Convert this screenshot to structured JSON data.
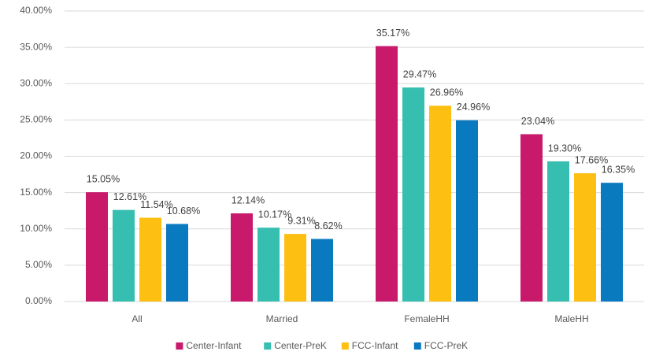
{
  "chart_data": {
    "type": "bar",
    "categories": [
      "All",
      "Married",
      "FemaleHH",
      "MaleHH"
    ],
    "series": [
      {
        "name": "Center-Infant",
        "color": "#c8196b",
        "values": [
          15.05,
          12.14,
          35.17,
          23.04
        ],
        "value_labels": [
          "15.05%",
          "12.14%",
          "35.17%",
          "23.04%"
        ]
      },
      {
        "name": "Center-PreK",
        "color": "#36bfb1",
        "values": [
          12.61,
          10.17,
          29.47,
          19.3
        ],
        "value_labels": [
          "12.61%",
          "10.17%",
          "29.47%",
          "19.30%"
        ]
      },
      {
        "name": "FCC-Infant",
        "color": "#fdbf12",
        "values": [
          11.54,
          9.31,
          26.96,
          17.66
        ],
        "value_labels": [
          "11.54%",
          "9.31%",
          "26.96%",
          "17.66%"
        ]
      },
      {
        "name": "FCC-PreK",
        "color": "#0979c0",
        "values": [
          10.68,
          8.62,
          24.96,
          16.35
        ],
        "value_labels": [
          "10.68%",
          "8.62%",
          "24.96%",
          "16.35%"
        ]
      }
    ],
    "ylim": [
      0,
      40
    ],
    "yticks": [
      {
        "value": 0,
        "label": "0.00%"
      },
      {
        "value": 5,
        "label": "5.00%"
      },
      {
        "value": 10,
        "label": "10.00%"
      },
      {
        "value": 15,
        "label": "15.00%"
      },
      {
        "value": 20,
        "label": "20.00%"
      },
      {
        "value": 25,
        "label": "25.00%"
      },
      {
        "value": 30,
        "label": "30.00%"
      },
      {
        "value": 35,
        "label": "35.00%"
      },
      {
        "value": 40,
        "label": "40.00%"
      }
    ],
    "grid": true,
    "legend": "bottom"
  }
}
